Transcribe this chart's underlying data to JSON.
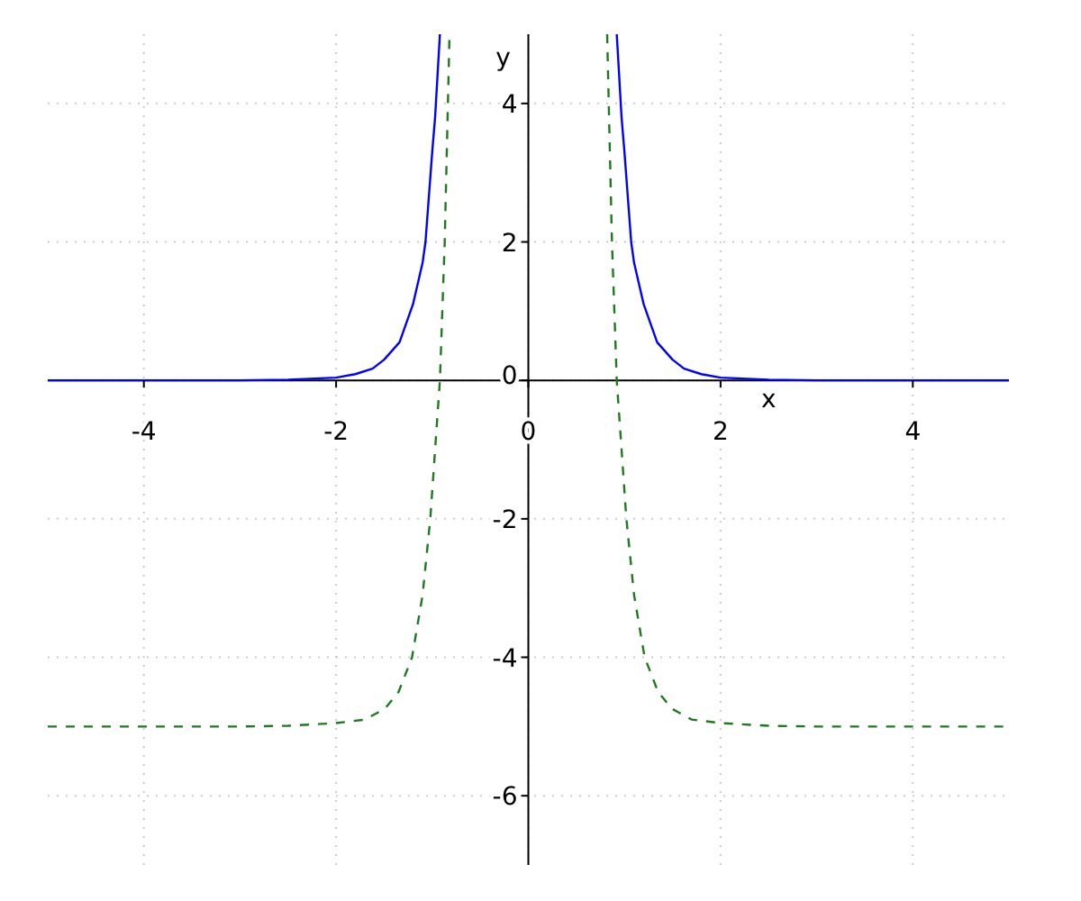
{
  "chart_data": {
    "type": "line",
    "xlabel": "x",
    "ylabel": "y",
    "xlim": [
      -5,
      5
    ],
    "ylim": [
      -7,
      5
    ],
    "xticks": [
      -4,
      -2,
      0,
      2,
      4
    ],
    "yticks": [
      -6,
      -4,
      -2,
      0,
      2,
      4
    ],
    "grid": true,
    "series": [
      {
        "color": "#0000ff",
        "line_style": "solid",
        "x": [
          -5,
          -4,
          -3,
          -2.5,
          -2,
          -1.8,
          -1.62,
          -1.5,
          -1.34,
          -1.2,
          -1.1,
          -1.07,
          -1.0,
          -0.97,
          -0.92
        ],
        "values": [
          0,
          0,
          0,
          0.01,
          0.04,
          0.09,
          0.17,
          0.3,
          0.55,
          1.1,
          1.7,
          2,
          3.3,
          3.8,
          5
        ]
      },
      {
        "color": "#0000ff",
        "line_style": "solid",
        "x": [
          0.92,
          0.97,
          1.0,
          1.07,
          1.1,
          1.2,
          1.34,
          1.5,
          1.62,
          1.8,
          2,
          2.5,
          3,
          4,
          5
        ],
        "values": [
          5,
          3.8,
          3.3,
          2,
          1.7,
          1.1,
          0.55,
          0.3,
          0.17,
          0.09,
          0.04,
          0.01,
          0,
          0,
          0
        ]
      },
      {
        "color": "#1f7a1f",
        "line_style": "dashed",
        "x": [
          -5,
          -4,
          -3,
          -2.5,
          -2,
          -1.7,
          -1.49,
          -1.35,
          -1.21,
          -1.1,
          -1.02,
          -0.97,
          -0.92,
          -0.87,
          -0.82
        ],
        "values": [
          -5,
          -5,
          -5,
          -4.99,
          -4.95,
          -4.9,
          -4.74,
          -4.5,
          -4,
          -3.1,
          -2,
          -1,
          0,
          2,
          5
        ]
      },
      {
        "color": "#1f7a1f",
        "line_style": "dashed",
        "x": [
          0.82,
          0.87,
          0.92,
          0.97,
          1.02,
          1.1,
          1.21,
          1.35,
          1.49,
          1.7,
          2,
          2.5,
          3,
          4,
          5
        ],
        "values": [
          5,
          2,
          0,
          -1,
          -2,
          -3.1,
          -4,
          -4.5,
          -4.74,
          -4.9,
          -4.95,
          -4.99,
          -5,
          -5,
          -5
        ]
      }
    ]
  }
}
